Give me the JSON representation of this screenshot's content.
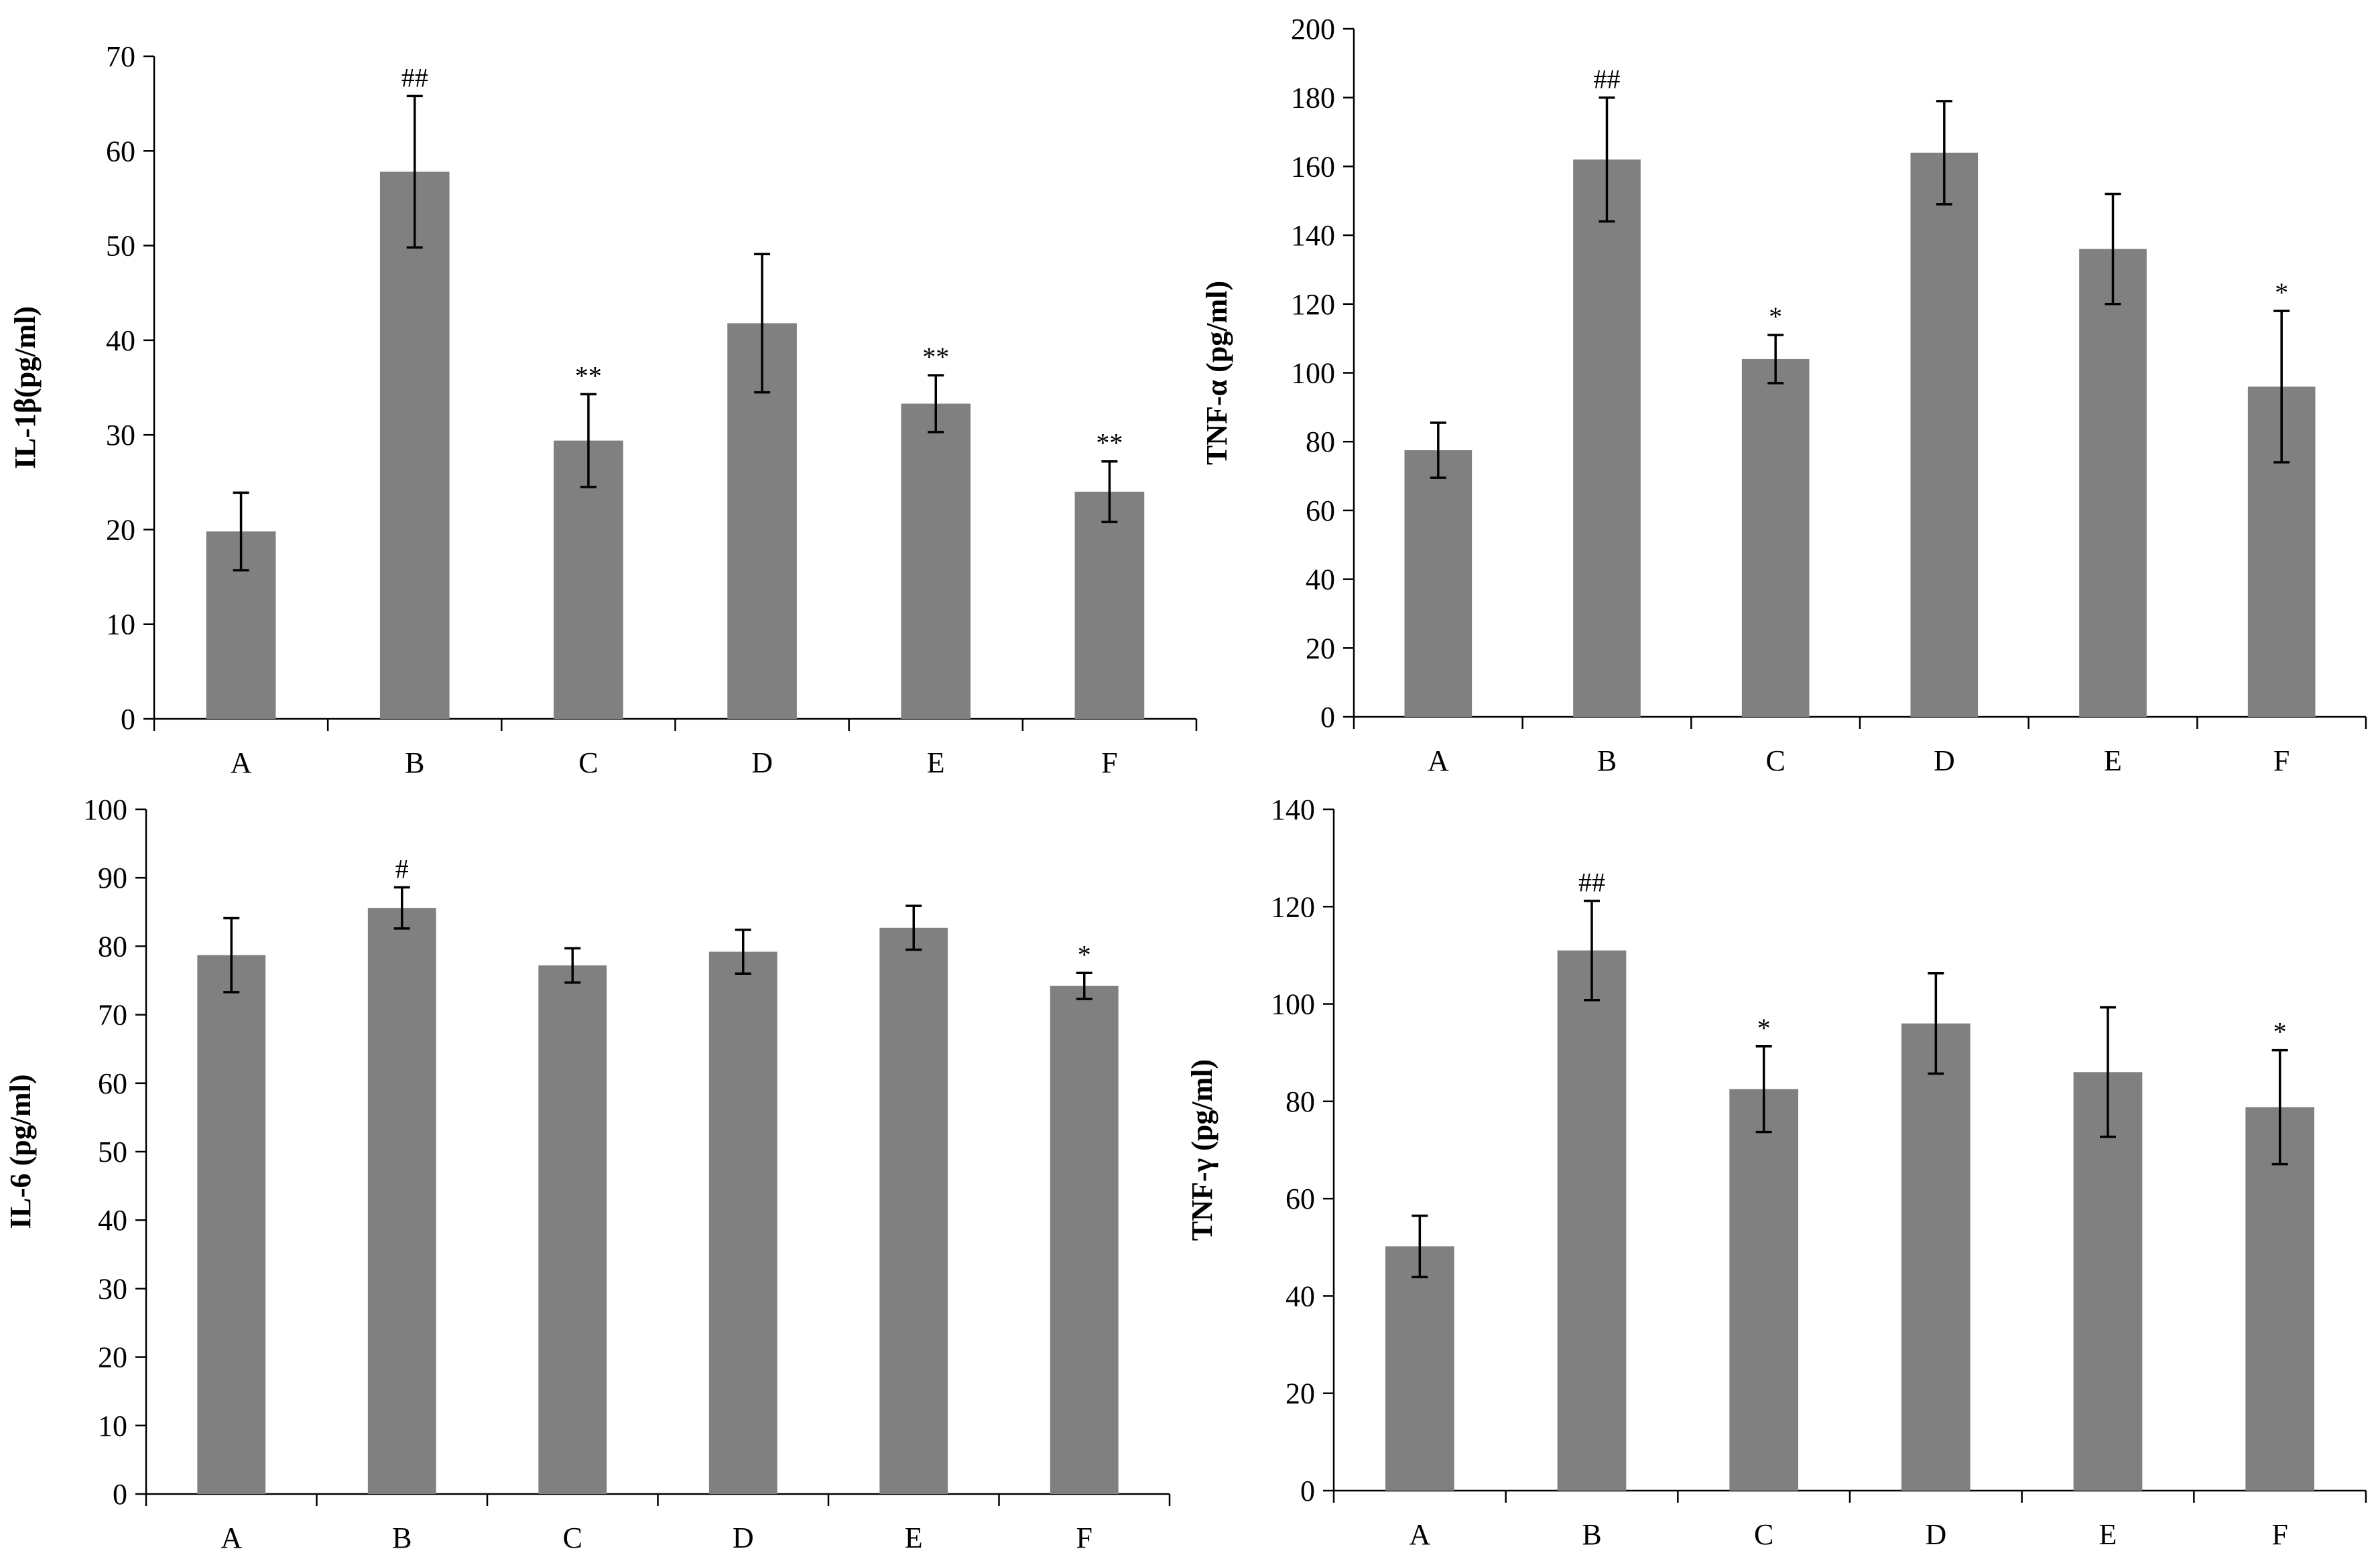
{
  "figure": {
    "bar_color": "#808080",
    "axis_color": "#000000",
    "background": "#ffffff"
  },
  "chart_data": [
    {
      "type": "bar",
      "panel": "top-left",
      "title": "",
      "xlabel": "",
      "ylabel": "IL-1β(pg/ml)",
      "categories": [
        "A",
        "B",
        "C",
        "D",
        "E",
        "F"
      ],
      "values": [
        19.8,
        57.8,
        29.4,
        41.8,
        33.3,
        24.0
      ],
      "errors": [
        4.1,
        8.0,
        4.9,
        7.3,
        3.0,
        3.2
      ],
      "significance": [
        "",
        "##",
        "**",
        "",
        "**",
        "**"
      ],
      "ylim": [
        0,
        70
      ],
      "yticks": [
        "0",
        "10",
        "20",
        "30",
        "40",
        "50",
        "60",
        "70"
      ]
    },
    {
      "type": "bar",
      "panel": "top-right",
      "title": "",
      "xlabel": "",
      "ylabel": "TNF-α (pg/ml)",
      "categories": [
        "A",
        "B",
        "C",
        "D",
        "E",
        "F"
      ],
      "values": [
        77.5,
        162.0,
        104.0,
        164.0,
        136.0,
        96.0
      ],
      "errors": [
        8.0,
        18.0,
        7.0,
        15.0,
        16.0,
        22.0
      ],
      "significance": [
        "",
        "##",
        "*",
        "",
        "",
        "*"
      ],
      "ylim": [
        0,
        200
      ],
      "yticks": [
        "0",
        "20",
        "40",
        "60",
        "80",
        "100",
        "120",
        "140",
        "160",
        "180",
        "200"
      ]
    },
    {
      "type": "bar",
      "panel": "bottom-left",
      "title": "",
      "xlabel": "",
      "ylabel": "IL-6 (pg/ml)",
      "categories": [
        "A",
        "B",
        "C",
        "D",
        "E",
        "F"
      ],
      "values": [
        78.7,
        85.6,
        77.2,
        79.2,
        82.7,
        74.2
      ],
      "errors": [
        5.4,
        3.0,
        2.5,
        3.2,
        3.2,
        1.9
      ],
      "significance": [
        "",
        "#",
        "",
        "",
        "",
        "*"
      ],
      "ylim": [
        0,
        100
      ],
      "yticks": [
        "0",
        "10",
        "20",
        "30",
        "40",
        "50",
        "60",
        "70",
        "80",
        "90",
        "100"
      ]
    },
    {
      "type": "bar",
      "panel": "bottom-right",
      "title": "",
      "xlabel": "",
      "ylabel": "TNF-γ (pg/ml)",
      "categories": [
        "A",
        "B",
        "C",
        "D",
        "E",
        "F"
      ],
      "values": [
        50.2,
        111.0,
        82.5,
        96.0,
        86.0,
        78.8
      ],
      "errors": [
        6.3,
        10.2,
        8.8,
        10.3,
        13.3,
        11.7
      ],
      "significance": [
        "",
        "##",
        "*",
        "",
        "",
        "*"
      ],
      "ylim": [
        0,
        140
      ],
      "yticks": [
        "0",
        "20",
        "40",
        "60",
        "80",
        "100",
        "120",
        "140"
      ]
    }
  ]
}
